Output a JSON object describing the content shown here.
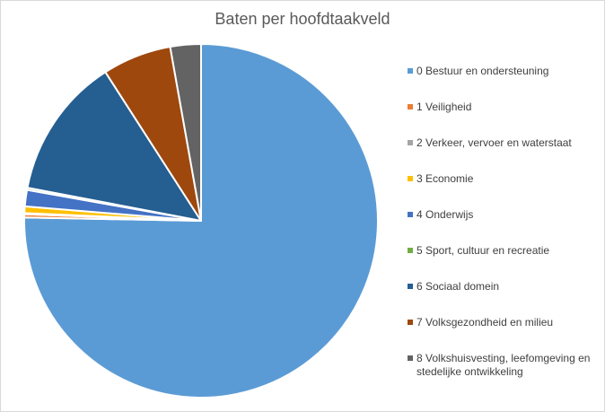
{
  "chart_data": {
    "type": "pie",
    "title": "Baten per hoofdtaakveld",
    "legend_position": "right",
    "categories": [
      "0 Bestuur en ondersteuning",
      "1 Veiligheid",
      "2 Verkeer, vervoer en waterstaat",
      "3 Economie",
      "4 Onderwijs",
      "5 Sport, cultuur en recreatie",
      "6 Sociaal domein",
      "7 Volksgezondheid en milieu",
      "8 Volkshuisvesting, leefomgeving en stedelijke ontwikkeling"
    ],
    "values": [
      75.3,
      0.3,
      0.1,
      0.6,
      1.5,
      0.2,
      12.9,
      6.3,
      2.8
    ],
    "colors": [
      "#5b9bd5",
      "#ed7d31",
      "#a5a5a5",
      "#ffc000",
      "#4472c4",
      "#70ad47",
      "#255e91",
      "#9e480e",
      "#636363"
    ]
  }
}
